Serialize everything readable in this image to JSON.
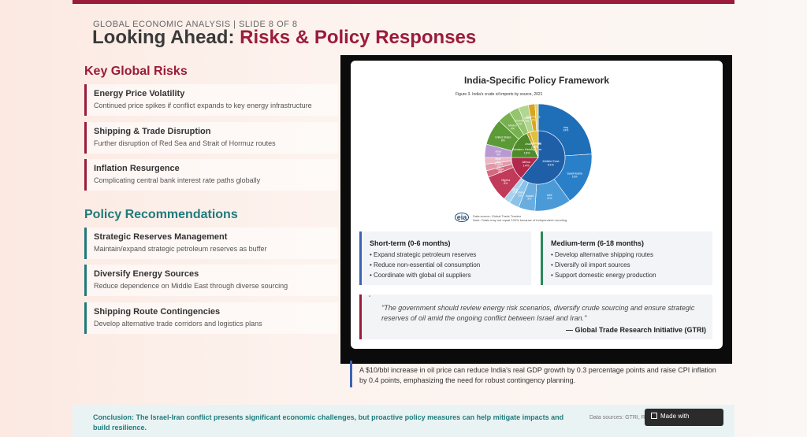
{
  "header": {
    "slide_label": "GLOBAL ECONOMIC ANALYSIS | SLIDE 8 OF 8",
    "title_main": "Looking Ahead: ",
    "title_accent": "Risks & Policy Responses"
  },
  "risks": {
    "heading": "Key Global Risks",
    "items": [
      {
        "title": "Energy Price Volatility",
        "desc": "Continued price spikes if conflict expands to key energy infrastructure"
      },
      {
        "title": "Shipping & Trade Disruption",
        "desc": "Further disruption of Red Sea and Strait of Hormuz routes"
      },
      {
        "title": "Inflation Resurgence",
        "desc": "Complicating central bank interest rate paths globally"
      }
    ]
  },
  "policy": {
    "heading": "Policy Recommendations",
    "items": [
      {
        "title": "Strategic Reserves Management",
        "desc": "Maintain/expand strategic petroleum reserves as buffer"
      },
      {
        "title": "Diversify Energy Sources",
        "desc": "Reduce dependence on Middle East through diverse sourcing"
      },
      {
        "title": "Shipping Route Contingencies",
        "desc": "Develop alternative trade corridors and logistics plans"
      }
    ]
  },
  "framework": {
    "title": "India-Specific Policy Framework",
    "figure_caption": "Figure 3. India's crude oil imports by source, 2021",
    "chart_source_line1": "Data source: Global Trade Tracker",
    "chart_source_line2": "Note: Totals may not equal 100% because of independent rounding.",
    "logo": "eia",
    "short_term": {
      "heading": "Short-term (0-6 months)",
      "items": [
        "• Expand strategic petroleum reserves",
        "• Reduce non-essential oil consumption",
        "• Coordinate with global oil suppliers"
      ]
    },
    "medium_term": {
      "heading": "Medium-term (6-18 months)",
      "items": [
        "• Develop alternative shipping routes",
        "• Diversify oil import sources",
        "• Support domestic energy production"
      ]
    },
    "quote": {
      "mark": "\"",
      "text": "\"The government should review energy risk scenarios, diversify crude sourcing and ensure strategic reserves of oil amid the ongoing conflict between Israel and Iran.\"",
      "author": "— Global Trade Research Initiative (GTRI)"
    }
  },
  "chart_data": {
    "type": "pie",
    "title": "Figure 3. India's crude oil imports by source, 2021",
    "inner": [
      {
        "label": "Middle East",
        "value": 61,
        "color": "#1f5fa8"
      },
      {
        "label": "Africa",
        "value": 14,
        "color": "#b0284a"
      },
      {
        "label": "Western Hemisphere",
        "value": 18,
        "color": "#4f8a2b"
      },
      {
        "label": "Asia-Pacific",
        "value": 2,
        "color": "#d9a520"
      },
      {
        "label": "Europe",
        "value": 5,
        "color": "#e0c040"
      }
    ],
    "outer": [
      {
        "label": "Iraq",
        "value": 24,
        "color": "#1f6fb8"
      },
      {
        "label": "Saudi Arabia",
        "value": 16,
        "color": "#2a80c8"
      },
      {
        "label": "UAE",
        "value": 11,
        "color": "#4a9ad8"
      },
      {
        "label": "Kuwait",
        "value": 5,
        "color": "#6aaee0"
      },
      {
        "label": "Oman",
        "value": 3,
        "color": "#8cc2e8"
      },
      {
        "label": "Qatar",
        "value": 2,
        "color": "#a8d2ee"
      },
      {
        "label": "Nigeria",
        "value": 8,
        "color": "#c23a5a"
      },
      {
        "label": "Egypt",
        "value": 2,
        "color": "#d46a80"
      },
      {
        "label": "Angola",
        "value": 2,
        "color": "#e09aaa"
      },
      {
        "label": "other",
        "value": 2,
        "color": "#eab8c4"
      },
      {
        "label": "other",
        "value": 4,
        "color": "#b89ad0"
      },
      {
        "label": "United States",
        "value": 8,
        "color": "#5c9a38"
      },
      {
        "label": "Mexico",
        "value": 4,
        "color": "#78b050"
      },
      {
        "label": "Colombia",
        "value": 3,
        "color": "#94c46c"
      },
      {
        "label": "other",
        "value": 3,
        "color": "#b2d690"
      },
      {
        "label": "Asia-Pacific",
        "value": 2,
        "color": "#d9a520"
      },
      {
        "label": "Europe",
        "value": 1,
        "color": "#e8d070"
      }
    ]
  },
  "note": "A $10/bbl increase in oil price can reduce India's real GDP growth by 0.3 percentage points and raise CPI inflation by 0.4 points, emphasizing the need for robust contingency planning.",
  "footer": {
    "conclusion": "Conclusion: The Israel-Iran conflict presents significant economic challenges, but proactive policy measures can help mitigate impacts and build resilience.",
    "sources": "Data sources: GTRI, Reuters, E Y India",
    "watermark": "Made with"
  }
}
